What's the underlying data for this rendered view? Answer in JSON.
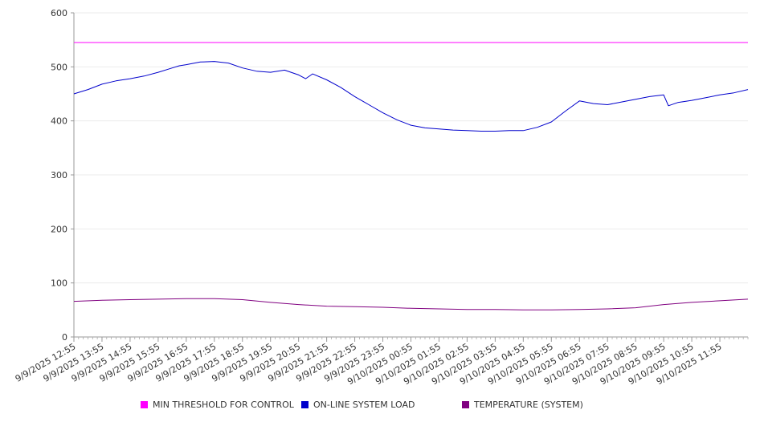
{
  "chart_data": {
    "type": "line",
    "ylim": [
      0,
      600
    ],
    "y_ticks": [
      0,
      100,
      200,
      300,
      400,
      500,
      600
    ],
    "x_range": [
      "9/9/2025 12:55",
      "9/10/2025 12:55"
    ],
    "x_tick_labels": [
      "9/9/2025 12:55",
      "9/9/2025 13:55",
      "9/9/2025 14:55",
      "9/9/2025 15:55",
      "9/9/2025 16:55",
      "9/9/2025 17:55",
      "9/9/2025 18:55",
      "9/9/2025 19:55",
      "9/9/2025 20:55",
      "9/9/2025 21:55",
      "9/9/2025 22:55",
      "9/9/2025 23:55",
      "9/10/2025 00:55",
      "9/10/2025 01:55",
      "9/10/2025 02:55",
      "9/10/2025 03:55",
      "9/10/2025 04:55",
      "9/10/2025 05:55",
      "9/10/2025 06:55",
      "9/10/2025 07:55",
      "9/10/2025 08:55",
      "9/10/2025 09:55",
      "9/10/2025 10:55",
      "9/10/2025 11:55"
    ],
    "grid": true,
    "legend_position": "bottom",
    "series": [
      {
        "name": "MIN THRESHOLD FOR CONTROL",
        "color": "#ff00ff",
        "x": [
          "9/9/2025 12:55",
          "9/10/2025 12:55"
        ],
        "values": [
          545,
          545
        ]
      },
      {
        "name": "ON-LINE SYSTEM LOAD",
        "color": "#0000cc",
        "x": [
          "9/9/2025 12:55",
          "9/9/2025 13:25",
          "9/9/2025 13:55",
          "9/9/2025 14:25",
          "9/9/2025 14:55",
          "9/9/2025 15:25",
          "9/9/2025 15:55",
          "9/9/2025 16:25",
          "9/9/2025 16:40",
          "9/9/2025 16:55",
          "9/9/2025 17:25",
          "9/9/2025 17:55",
          "9/9/2025 18:25",
          "9/9/2025 18:55",
          "9/9/2025 19:25",
          "9/9/2025 19:55",
          "9/9/2025 20:25",
          "9/9/2025 20:55",
          "9/9/2025 21:10",
          "9/9/2025 21:25",
          "9/9/2025 21:55",
          "9/9/2025 22:25",
          "9/9/2025 22:55",
          "9/9/2025 23:25",
          "9/9/2025 23:55",
          "9/10/2025 00:25",
          "9/10/2025 00:55",
          "9/10/2025 01:25",
          "9/10/2025 01:55",
          "9/10/2025 02:25",
          "9/10/2025 02:55",
          "9/10/2025 03:25",
          "9/10/2025 03:55",
          "9/10/2025 04:25",
          "9/10/2025 04:55",
          "9/10/2025 05:25",
          "9/10/2025 05:55",
          "9/10/2025 06:25",
          "9/10/2025 06:55",
          "9/10/2025 07:25",
          "9/10/2025 07:55",
          "9/10/2025 08:25",
          "9/10/2025 08:55",
          "9/10/2025 09:25",
          "9/10/2025 09:55",
          "9/10/2025 10:05",
          "9/10/2025 10:25",
          "9/10/2025 10:55",
          "9/10/2025 11:25",
          "9/10/2025 11:55",
          "9/10/2025 12:25",
          "9/10/2025 12:55"
        ],
        "values": [
          450,
          458,
          468,
          474,
          478,
          483,
          490,
          498,
          502,
          504,
          509,
          510,
          507,
          498,
          492,
          490,
          494,
          485,
          478,
          487,
          476,
          462,
          445,
          430,
          415,
          402,
          392,
          387,
          385,
          383,
          382,
          381,
          381,
          382,
          382,
          388,
          398,
          418,
          437,
          432,
          430,
          435,
          440,
          445,
          448,
          428,
          434,
          438,
          443,
          448,
          452,
          458
        ]
      },
      {
        "name": "TEMPERATURE (SYSTEM)",
        "color": "#800080",
        "x": [
          "9/9/2025 12:55",
          "9/9/2025 13:55",
          "9/9/2025 14:55",
          "9/9/2025 15:55",
          "9/9/2025 16:55",
          "9/9/2025 17:55",
          "9/9/2025 18:55",
          "9/9/2025 19:55",
          "9/9/2025 20:55",
          "9/9/2025 21:55",
          "9/9/2025 22:55",
          "9/9/2025 23:55",
          "9/10/2025 00:55",
          "9/10/2025 01:55",
          "9/10/2025 02:55",
          "9/10/2025 03:55",
          "9/10/2025 04:55",
          "9/10/2025 05:55",
          "9/10/2025 06:55",
          "9/10/2025 07:55",
          "9/10/2025 08:55",
          "9/10/2025 09:55",
          "9/10/2025 10:55",
          "9/10/2025 11:55",
          "9/10/2025 12:55"
        ],
        "values": [
          66,
          68,
          69,
          70,
          71,
          71,
          69,
          64,
          60,
          57,
          56,
          55,
          53,
          52,
          51,
          51,
          50,
          50,
          51,
          52,
          54,
          60,
          64,
          67,
          70
        ]
      }
    ]
  }
}
